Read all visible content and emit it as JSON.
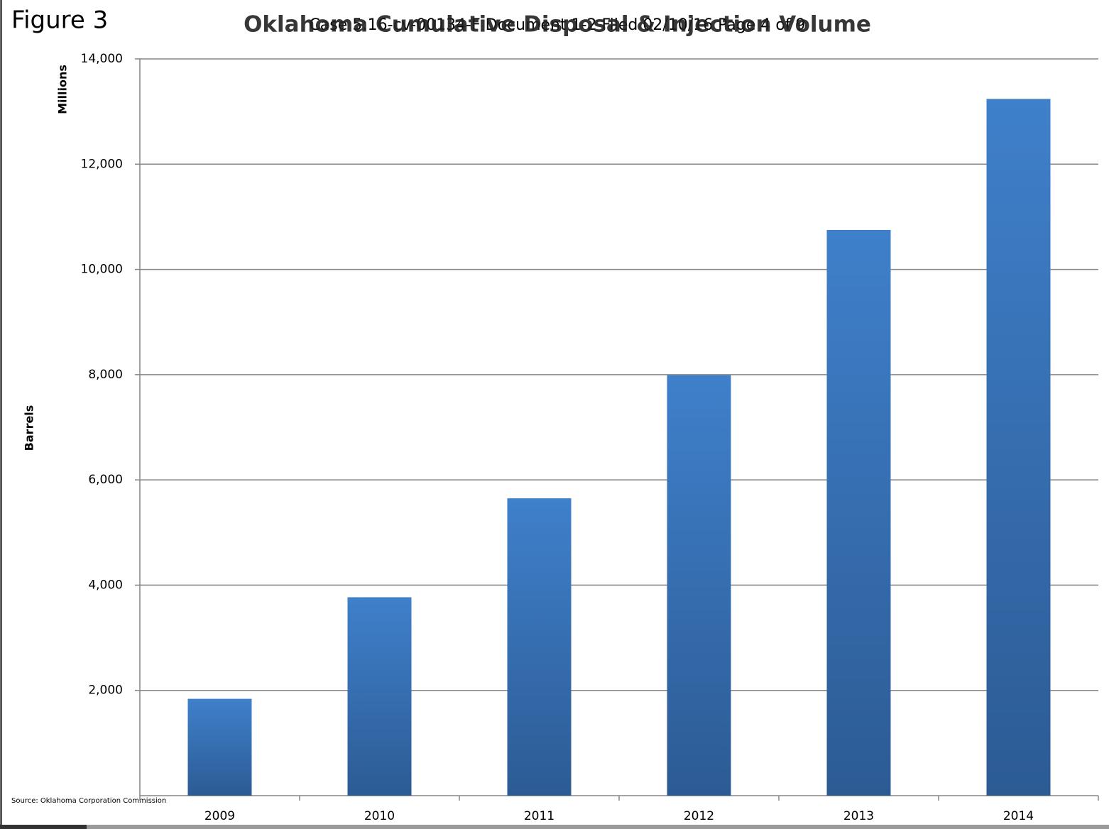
{
  "chart_data": {
    "type": "bar",
    "figure_label": "Figure 3",
    "title": "Oklahoma Cumulative Disposal & Injection Volume",
    "watermark": "Case 5:16-cv-00134-F Document 1-2 Filed 02/10/16 Page 4 of 9",
    "y_unit": "Millions",
    "y_label": "Barrels",
    "source": "Source: Oklahoma Corporation Commission",
    "categories": [
      "2009",
      "2010",
      "2011",
      "2012",
      "2013",
      "2014"
    ],
    "values": [
      1840,
      3770,
      5650,
      7990,
      10750,
      13240
    ],
    "color": "#3f80cb",
    "ylim": [
      0,
      14000
    ],
    "yticks": [
      {
        "value": 2000,
        "label": "2,000"
      },
      {
        "value": 4000,
        "label": "4,000"
      },
      {
        "value": 6000,
        "label": "6,000"
      },
      {
        "value": 8000,
        "label": "8,000"
      },
      {
        "value": 10000,
        "label": "10,000"
      },
      {
        "value": 12000,
        "label": "12,000"
      },
      {
        "value": 14000,
        "label": "14,000"
      }
    ],
    "grid": true
  }
}
